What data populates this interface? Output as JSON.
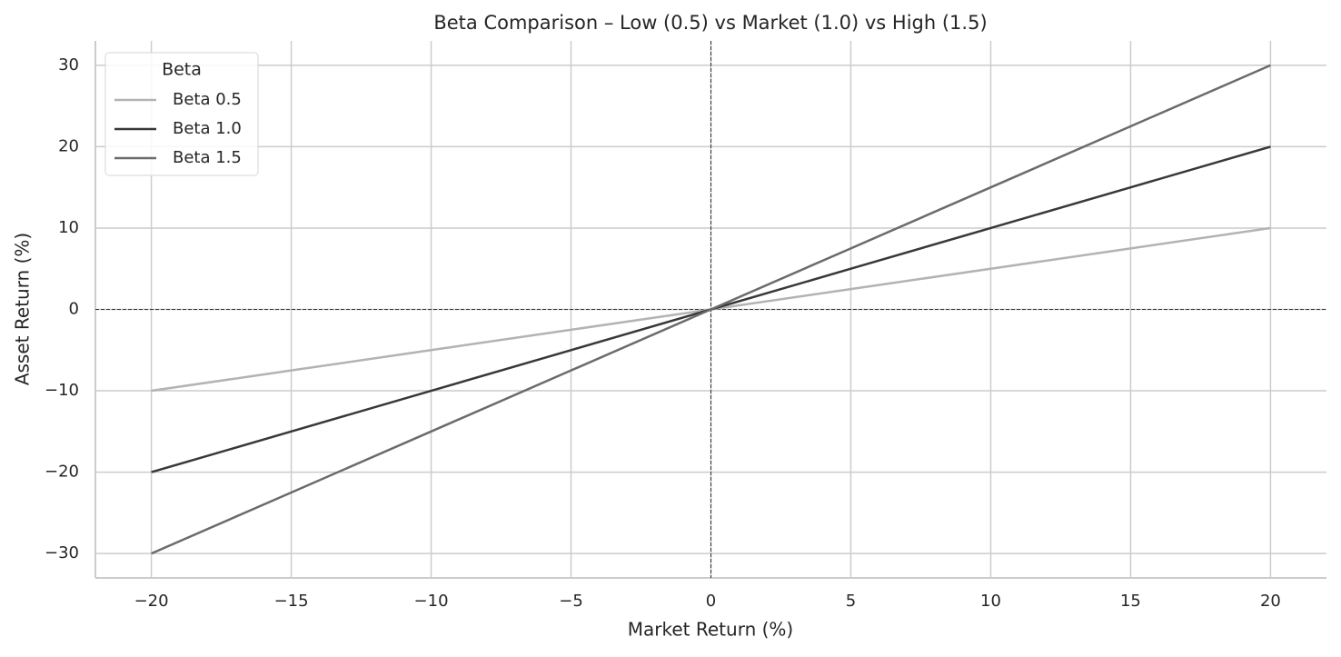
{
  "chart_data": {
    "type": "line",
    "title": "Beta Comparison – Low (0.5) vs Market (1.0) vs High (1.5)",
    "x_label": "Market Return (%)",
    "y_label": "Asset Return (%)",
    "x": [
      -20,
      -15,
      -10,
      -5,
      0,
      5,
      10,
      15,
      20
    ],
    "series": [
      {
        "name": "Beta 0.5",
        "color": "#b3b3b3",
        "values": [
          -10,
          -7.5,
          -5,
          -2.5,
          0,
          2.5,
          5,
          7.5,
          10
        ]
      },
      {
        "name": "Beta 1.0",
        "color": "#383838",
        "values": [
          -20,
          -15,
          -10,
          -5,
          0,
          5,
          10,
          15,
          20
        ]
      },
      {
        "name": "Beta 1.5",
        "color": "#6b6b6b",
        "values": [
          -30,
          -22.5,
          -15,
          -7.5,
          0,
          7.5,
          15,
          22.5,
          30
        ]
      }
    ],
    "xlim": [
      -22,
      22
    ],
    "ylim": [
      -33,
      33
    ],
    "xticks": [
      {
        "value": -20,
        "label": "−20"
      },
      {
        "value": -15,
        "label": "−15"
      },
      {
        "value": -10,
        "label": "−10"
      },
      {
        "value": -5,
        "label": "−5"
      },
      0,
      5,
      10,
      15,
      20
    ],
    "yticks": [
      {
        "value": -30,
        "label": "−30"
      },
      {
        "value": -20,
        "label": "−20"
      },
      {
        "value": -10,
        "label": "−10"
      },
      0,
      10,
      20,
      30
    ],
    "reference_lines": {
      "x": 0,
      "y": 0
    },
    "grid": true,
    "legend_title": "Beta",
    "legend_position": "upper-left"
  }
}
